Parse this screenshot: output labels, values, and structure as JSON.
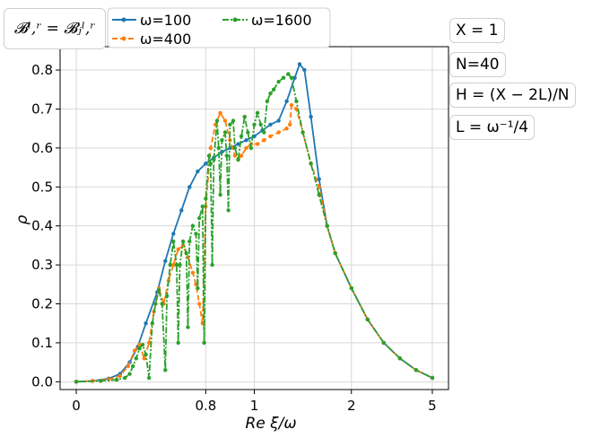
{
  "annotations": {
    "basis": "𝓑ˡ,ʳ = 𝓑ⱼˡ,ʳ",
    "params": [
      "X = 1",
      "N=40",
      "H = (X − 2L)/N",
      "L = ω⁻¹/4"
    ]
  },
  "chart_data": {
    "type": "line",
    "xlabel": "Re ξ/ω",
    "ylabel": "ρ",
    "x_ticks": [
      "0",
      "0.8",
      "1",
      "2",
      "5"
    ],
    "x_tick_positions": [
      0,
      0.8,
      1.1,
      1.7,
      2.2
    ],
    "ylim": [
      -0.02,
      0.86
    ],
    "y_ticks": [
      "0.0",
      "0.1",
      "0.2",
      "0.3",
      "0.4",
      "0.5",
      "0.6",
      "0.7",
      "0.8"
    ],
    "grid": true,
    "legend_position": "top",
    "series": [
      {
        "name": "ω=100",
        "color": "#1f77b4",
        "style": "solid",
        "marker": "dot",
        "points": [
          [
            0,
            0
          ],
          [
            0.1,
            0.002
          ],
          [
            0.2,
            0.008
          ],
          [
            0.27,
            0.02
          ],
          [
            0.33,
            0.05
          ],
          [
            0.38,
            0.09
          ],
          [
            0.43,
            0.15
          ],
          [
            0.5,
            0.23
          ],
          [
            0.55,
            0.31
          ],
          [
            0.6,
            0.38
          ],
          [
            0.65,
            0.44
          ],
          [
            0.7,
            0.5
          ],
          [
            0.75,
            0.54
          ],
          [
            0.8,
            0.56
          ],
          [
            0.85,
            0.575
          ],
          [
            0.9,
            0.59
          ],
          [
            0.95,
            0.6
          ],
          [
            1.0,
            0.61
          ],
          [
            1.05,
            0.62
          ],
          [
            1.1,
            0.63
          ],
          [
            1.15,
            0.645
          ],
          [
            1.2,
            0.66
          ],
          [
            1.25,
            0.67
          ],
          [
            1.3,
            0.72
          ],
          [
            1.35,
            0.78
          ],
          [
            1.38,
            0.815
          ],
          [
            1.41,
            0.8
          ],
          [
            1.45,
            0.68
          ],
          [
            1.5,
            0.52
          ],
          [
            1.55,
            0.4
          ],
          [
            1.6,
            0.33
          ],
          [
            1.7,
            0.24
          ],
          [
            1.8,
            0.16
          ],
          [
            1.9,
            0.1
          ],
          [
            2.0,
            0.06
          ],
          [
            2.1,
            0.03
          ],
          [
            2.2,
            0.01
          ]
        ]
      },
      {
        "name": "ω=400",
        "color": "#ff7f0e",
        "style": "dashed",
        "marker": "dot",
        "points": [
          [
            0,
            0
          ],
          [
            0.1,
            0.002
          ],
          [
            0.2,
            0.006
          ],
          [
            0.27,
            0.015
          ],
          [
            0.32,
            0.04
          ],
          [
            0.36,
            0.08
          ],
          [
            0.39,
            0.095
          ],
          [
            0.42,
            0.06
          ],
          [
            0.45,
            0.1
          ],
          [
            0.48,
            0.18
          ],
          [
            0.51,
            0.24
          ],
          [
            0.54,
            0.2
          ],
          [
            0.57,
            0.26
          ],
          [
            0.6,
            0.3
          ],
          [
            0.63,
            0.34
          ],
          [
            0.66,
            0.35
          ],
          [
            0.69,
            0.32
          ],
          [
            0.72,
            0.28
          ],
          [
            0.74,
            0.25
          ],
          [
            0.76,
            0.2
          ],
          [
            0.78,
            0.15
          ],
          [
            0.8,
            0.45
          ],
          [
            0.83,
            0.6
          ],
          [
            0.86,
            0.66
          ],
          [
            0.89,
            0.69
          ],
          [
            0.92,
            0.67
          ],
          [
            0.95,
            0.62
          ],
          [
            0.98,
            0.58
          ],
          [
            1.0,
            0.57
          ],
          [
            1.02,
            0.58
          ],
          [
            1.05,
            0.6
          ],
          [
            1.08,
            0.61
          ],
          [
            1.12,
            0.61
          ],
          [
            1.16,
            0.62
          ],
          [
            1.2,
            0.63
          ],
          [
            1.25,
            0.64
          ],
          [
            1.3,
            0.65
          ],
          [
            1.32,
            0.66
          ],
          [
            1.33,
            0.71
          ],
          [
            1.36,
            0.7
          ],
          [
            1.4,
            0.64
          ],
          [
            1.45,
            0.56
          ],
          [
            1.5,
            0.5
          ],
          [
            1.55,
            0.4
          ],
          [
            1.6,
            0.33
          ],
          [
            1.7,
            0.24
          ],
          [
            1.8,
            0.16
          ],
          [
            1.9,
            0.1
          ],
          [
            2.0,
            0.06
          ],
          [
            2.1,
            0.03
          ],
          [
            2.2,
            0.01
          ]
        ]
      },
      {
        "name": "ω=1600",
        "color": "#2ca02c",
        "style": "dashdot",
        "marker": "dot",
        "points": [
          [
            0,
            0
          ],
          [
            0.15,
            0.002
          ],
          [
            0.25,
            0.005
          ],
          [
            0.3,
            0.01
          ],
          [
            0.33,
            0.02
          ],
          [
            0.35,
            0.04
          ],
          [
            0.37,
            0.06
          ],
          [
            0.39,
            0.085
          ],
          [
            0.41,
            0.095
          ],
          [
            0.43,
            0.07
          ],
          [
            0.45,
            0.01
          ],
          [
            0.47,
            0.15
          ],
          [
            0.49,
            0.2
          ],
          [
            0.51,
            0.235
          ],
          [
            0.53,
            0.2
          ],
          [
            0.55,
            0.03
          ],
          [
            0.56,
            0.22
          ],
          [
            0.58,
            0.3
          ],
          [
            0.6,
            0.36
          ],
          [
            0.62,
            0.3
          ],
          [
            0.63,
            0.1
          ],
          [
            0.64,
            0.3
          ],
          [
            0.66,
            0.36
          ],
          [
            0.68,
            0.33
          ],
          [
            0.69,
            0.14
          ],
          [
            0.7,
            0.36
          ],
          [
            0.72,
            0.4
          ],
          [
            0.74,
            0.38
          ],
          [
            0.75,
            0.24
          ],
          [
            0.76,
            0.42
          ],
          [
            0.78,
            0.45
          ],
          [
            0.79,
            0.1
          ],
          [
            0.8,
            0.47
          ],
          [
            0.82,
            0.58
          ],
          [
            0.83,
            0.56
          ],
          [
            0.84,
            0.3
          ],
          [
            0.85,
            0.57
          ],
          [
            0.87,
            0.67
          ],
          [
            0.88,
            0.6
          ],
          [
            0.89,
            0.48
          ],
          [
            0.9,
            0.62
          ],
          [
            0.92,
            0.64
          ],
          [
            0.93,
            0.58
          ],
          [
            0.94,
            0.44
          ],
          [
            0.95,
            0.66
          ],
          [
            0.97,
            0.67
          ],
          [
            0.98,
            0.6
          ],
          [
            1.0,
            0.57
          ],
          [
            1.02,
            0.63
          ],
          [
            1.04,
            0.68
          ],
          [
            1.06,
            0.64
          ],
          [
            1.08,
            0.6
          ],
          [
            1.1,
            0.66
          ],
          [
            1.12,
            0.69
          ],
          [
            1.14,
            0.66
          ],
          [
            1.16,
            0.64
          ],
          [
            1.18,
            0.72
          ],
          [
            1.2,
            0.74
          ],
          [
            1.22,
            0.75
          ],
          [
            1.25,
            0.77
          ],
          [
            1.28,
            0.78
          ],
          [
            1.31,
            0.79
          ],
          [
            1.33,
            0.78
          ],
          [
            1.36,
            0.72
          ],
          [
            1.4,
            0.64
          ],
          [
            1.45,
            0.56
          ],
          [
            1.5,
            0.48
          ],
          [
            1.55,
            0.4
          ],
          [
            1.6,
            0.33
          ],
          [
            1.7,
            0.24
          ],
          [
            1.8,
            0.16
          ],
          [
            1.9,
            0.1
          ],
          [
            2.0,
            0.06
          ],
          [
            2.1,
            0.03
          ],
          [
            2.2,
            0.01
          ]
        ]
      }
    ]
  }
}
